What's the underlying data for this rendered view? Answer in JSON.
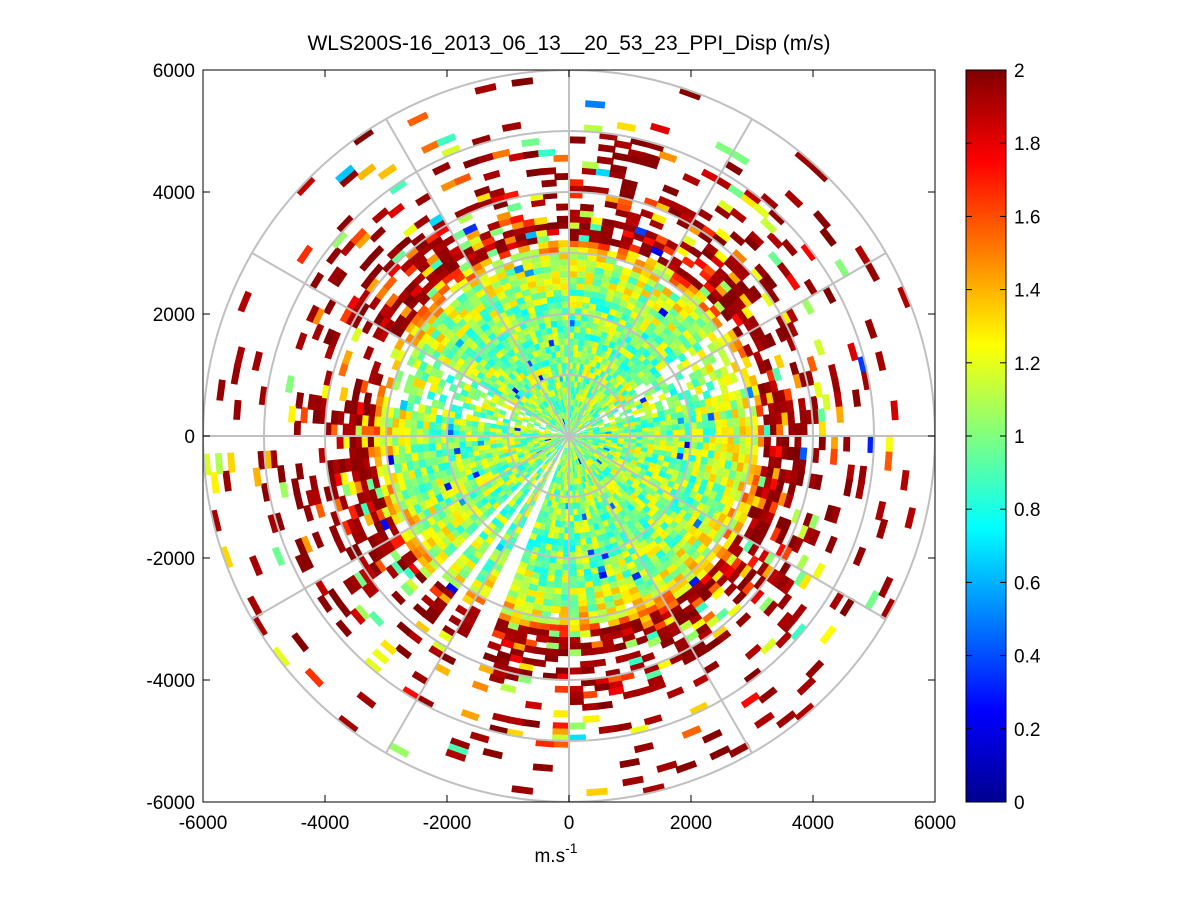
{
  "chart_data": {
    "type": "heatmap",
    "subtype": "polar-ppi-scan",
    "title": "WLS200S-16_2013_06_13__20_53_23_PPI_Disp (m/s)",
    "xlabel": {
      "base": "m.s",
      "superscript": "-1"
    },
    "ylabel": "",
    "xlim": [
      -6000,
      6000
    ],
    "ylim": [
      -6000,
      6000
    ],
    "xticks": [
      "-6000",
      "-4000",
      "-2000",
      "0",
      "2000",
      "4000",
      "6000"
    ],
    "yticks": [
      "6000",
      "4000",
      "2000",
      "0",
      "-2000",
      "-4000",
      "-6000"
    ],
    "x_tick_values": [
      -6000,
      -4000,
      -2000,
      0,
      2000,
      4000,
      6000
    ],
    "y_tick_values": [
      6000,
      4000,
      2000,
      0,
      -2000,
      -4000,
      -6000
    ],
    "grid": "polar",
    "polar_grid_radii": [
      1000,
      2000,
      3000,
      4000,
      5000,
      6000
    ],
    "polar_grid_angles_deg": [
      0,
      30,
      60,
      90,
      120,
      150,
      180,
      210,
      240,
      270,
      300,
      330
    ],
    "colormap": "jet",
    "colorbar": {
      "range": [
        0,
        2
      ],
      "ticks": [
        "2",
        "1.8",
        "1.6",
        "1.4",
        "1.2",
        "1",
        "0.8",
        "0.6",
        "0.4",
        "0.2",
        "0"
      ],
      "tick_values": [
        2,
        1.8,
        1.6,
        1.4,
        1.2,
        1,
        0.8,
        0.6,
        0.4,
        0.2,
        0
      ]
    },
    "field_summary": {
      "max_range_m": 6000,
      "value_by_range_m": [
        {
          "range": 0,
          "value": 1.0
        },
        {
          "range": 1000,
          "value": 1.05
        },
        {
          "range": 2000,
          "value": 1.0
        },
        {
          "range": 2800,
          "value": 1.15
        },
        {
          "range": 3300,
          "value": 1.6
        },
        {
          "range": 3800,
          "value": 1.95
        },
        {
          "range": 6000,
          "value": 2.0
        }
      ],
      "no_data_azimuth_sectors_deg": [
        [
          200,
          208
        ],
        [
          212,
          216
        ],
        [
          223,
          226
        ]
      ]
    }
  }
}
